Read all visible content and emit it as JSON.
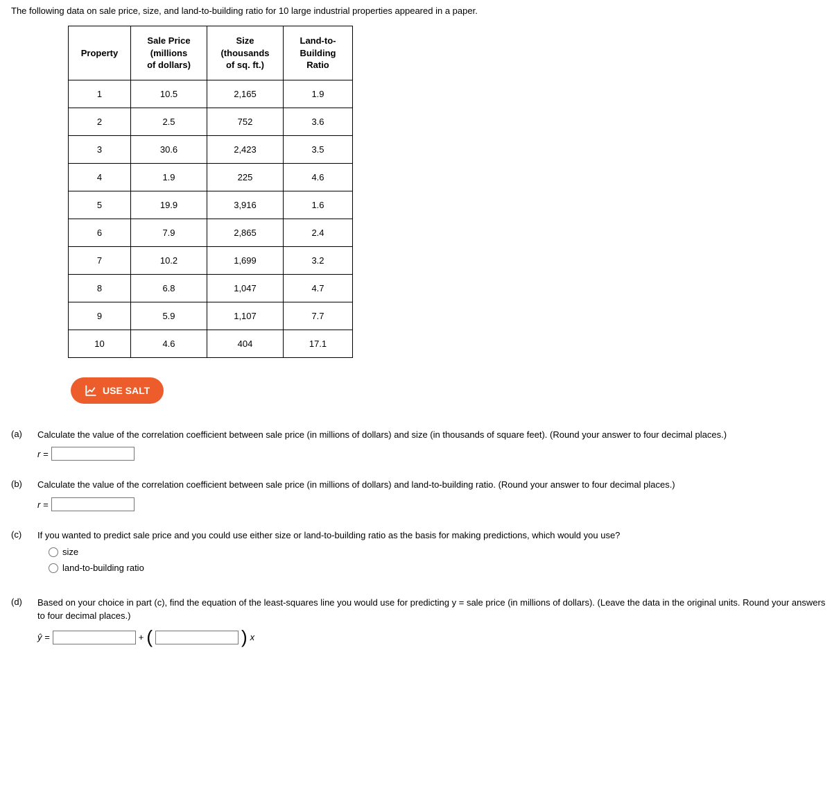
{
  "intro": "The following data on sale price, size, and land-to-building ratio for 10 large industrial properties appeared in a paper.",
  "table": {
    "headers": {
      "c1": "Property",
      "c2_l1": "Sale Price",
      "c2_l2": "(millions",
      "c2_l3": "of dollars)",
      "c3_l1": "Size",
      "c3_l2": "(thousands",
      "c3_l3": "of sq. ft.)",
      "c4_l1": "Land-to-",
      "c4_l2": "Building",
      "c4_l3": "Ratio"
    },
    "rows": [
      {
        "p": "1",
        "price": "10.5",
        "size": "2,165",
        "ratio": "1.9"
      },
      {
        "p": "2",
        "price": "2.5",
        "size": "752",
        "ratio": "3.6"
      },
      {
        "p": "3",
        "price": "30.6",
        "size": "2,423",
        "ratio": "3.5"
      },
      {
        "p": "4",
        "price": "1.9",
        "size": "225",
        "ratio": "4.6"
      },
      {
        "p": "5",
        "price": "19.9",
        "size": "3,916",
        "ratio": "1.6"
      },
      {
        "p": "6",
        "price": "7.9",
        "size": "2,865",
        "ratio": "2.4"
      },
      {
        "p": "7",
        "price": "10.2",
        "size": "1,699",
        "ratio": "3.2"
      },
      {
        "p": "8",
        "price": "6.8",
        "size": "1,047",
        "ratio": "4.7"
      },
      {
        "p": "9",
        "price": "5.9",
        "size": "1,107",
        "ratio": "7.7"
      },
      {
        "p": "10",
        "price": "4.6",
        "size": "404",
        "ratio": "17.1"
      }
    ]
  },
  "salt_label": "USE SALT",
  "questions": {
    "a": {
      "label": "(a)",
      "text": "Calculate the value of the correlation coefficient between sale price (in millions of dollars) and size (in thousands of square feet). (Round your answer to four decimal places.)",
      "var": "r ="
    },
    "b": {
      "label": "(b)",
      "text": "Calculate the value of the correlation coefficient between sale price (in millions of dollars) and land-to-building ratio. (Round your answer to four decimal places.)",
      "var": "r ="
    },
    "c": {
      "label": "(c)",
      "text": "If you wanted to predict sale price and you could use either size or land-to-building ratio as the basis for making predictions, which would you use?",
      "opt1": "size",
      "opt2": "land-to-building ratio"
    },
    "d": {
      "label": "(d)",
      "text": "Based on your choice in part (c), find the equation of the least-squares line you would use for predicting y = sale price (in millions of dollars). (Leave the data in the original units. Round your answers to four decimal places.)",
      "lhs": "ŷ =",
      "plus": "+",
      "xvar": "x"
    }
  },
  "colors": {
    "salt_bg": "#ed5c2b",
    "salt_fg": "#ffffff",
    "border": "#000000"
  }
}
